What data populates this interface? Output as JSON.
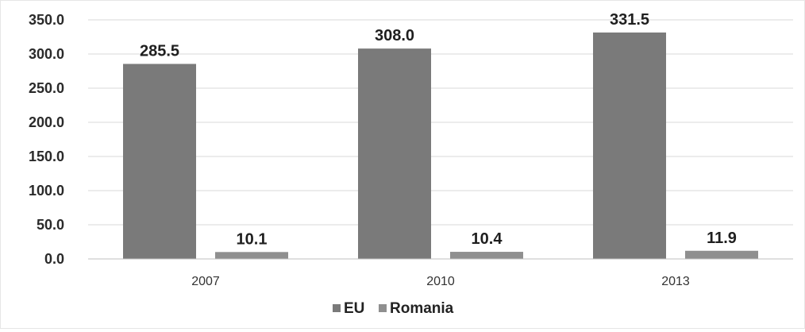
{
  "chart_data": {
    "type": "bar",
    "categories": [
      "2007",
      "2010",
      "2013"
    ],
    "series": [
      {
        "name": "EU",
        "values": [
          285.5,
          308.0,
          331.5
        ],
        "labels": [
          "285.5",
          "308.0",
          "331.5"
        ],
        "color": "#7a7a7a"
      },
      {
        "name": "Romania",
        "values": [
          10.1,
          10.4,
          11.9
        ],
        "labels": [
          "10.1",
          "10.4",
          "11.9"
        ],
        "color": "#8f8f8f"
      }
    ],
    "ylim": [
      0,
      350
    ],
    "yticks": [
      "0.0",
      "50.0",
      "100.0",
      "150.0",
      "200.0",
      "250.0",
      "300.0",
      "350.0"
    ],
    "grid": true,
    "legend_position": "bottom"
  }
}
